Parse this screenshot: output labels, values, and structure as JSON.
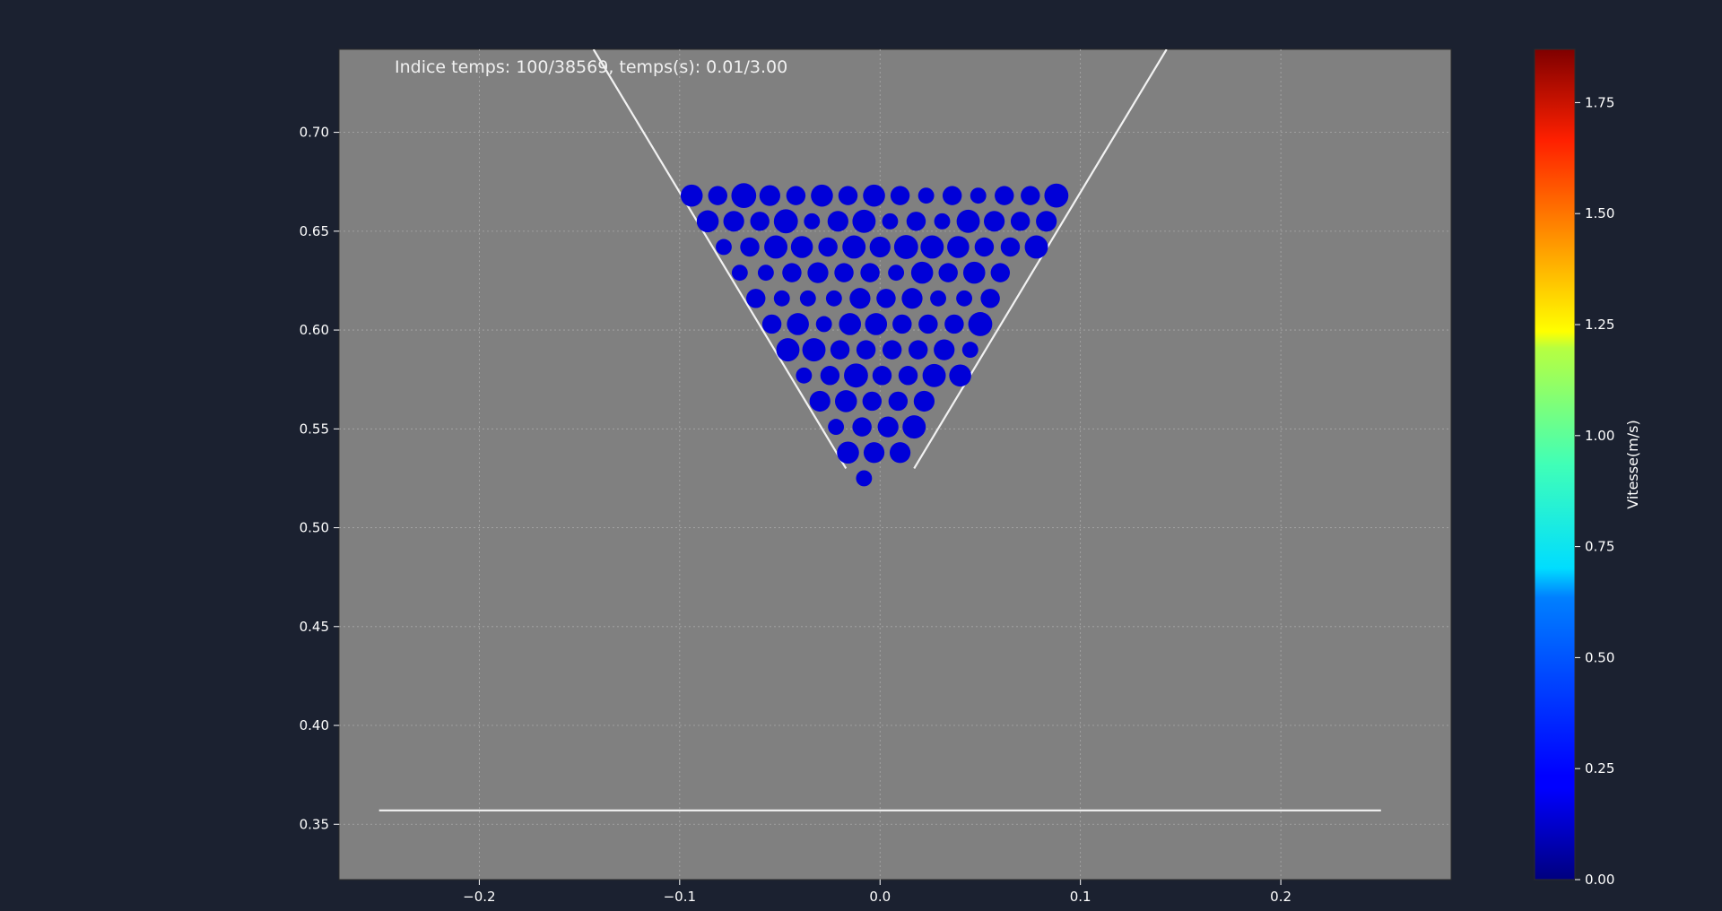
{
  "chart_data": {
    "type": "scatter",
    "annotation": "Indice temps: 100/38569, temps(s): 0.01/3.00",
    "xlim": [
      -0.27,
      0.285
    ],
    "ylim": [
      0.322,
      0.742
    ],
    "xticks": [
      -0.2,
      -0.1,
      0.0,
      0.1,
      0.2
    ],
    "xtick_labels": [
      "−0.2",
      "−0.1",
      "0.0",
      "0.1",
      "0.2"
    ],
    "yticks": [
      0.35,
      0.4,
      0.45,
      0.5,
      0.55,
      0.6,
      0.65,
      0.7
    ],
    "ytick_labels": [
      "0.35",
      "0.40",
      "0.45",
      "0.50",
      "0.55",
      "0.60",
      "0.65",
      "0.70"
    ],
    "grid": true,
    "walls": [
      {
        "x": [
          -0.143,
          -0.017
        ],
        "y": [
          0.742,
          0.53
        ]
      },
      {
        "x": [
          0.143,
          0.017
        ],
        "y": [
          0.742,
          0.53
        ]
      },
      {
        "x": [
          -0.25,
          0.25
        ],
        "y": [
          0.357,
          0.357
        ]
      }
    ],
    "particle_color": "#0000d8",
    "particles": [
      {
        "row": 0,
        "y": 0.668,
        "x": [
          -0.094,
          -0.081,
          -0.068,
          -0.055,
          -0.042,
          -0.029,
          -0.016,
          -0.003,
          0.01,
          0.023,
          0.036,
          0.049,
          0.062,
          0.075,
          0.088
        ],
        "r": [
          0.0055,
          0.0048,
          0.0062,
          0.0052,
          0.0048,
          0.0055,
          0.0048,
          0.0055,
          0.0048,
          0.004,
          0.0048,
          0.004,
          0.0048,
          0.0048,
          0.006
        ]
      },
      {
        "row": 1,
        "y": 0.655,
        "x": [
          -0.086,
          -0.073,
          -0.06,
          -0.047,
          -0.034,
          -0.021,
          -0.008,
          0.005,
          0.018,
          0.031,
          0.044,
          0.057,
          0.07,
          0.083
        ],
        "r": [
          0.0055,
          0.0052,
          0.0048,
          0.006,
          0.004,
          0.0052,
          0.0058,
          0.004,
          0.0048,
          0.004,
          0.0058,
          0.0052,
          0.0048,
          0.0052
        ]
      },
      {
        "row": 2,
        "y": 0.642,
        "x": [
          -0.078,
          -0.065,
          -0.052,
          -0.039,
          -0.026,
          -0.013,
          0.0,
          0.013,
          0.026,
          0.039,
          0.052,
          0.065,
          0.078
        ],
        "r": [
          0.004,
          0.0048,
          0.0058,
          0.0055,
          0.0048,
          0.0058,
          0.0052,
          0.006,
          0.0058,
          0.0055,
          0.0048,
          0.0048,
          0.0058
        ]
      },
      {
        "row": 3,
        "y": 0.629,
        "x": [
          -0.07,
          -0.057,
          -0.044,
          -0.031,
          -0.018,
          -0.005,
          0.008,
          0.021,
          0.034,
          0.047,
          0.06
        ],
        "r": [
          0.004,
          0.004,
          0.0048,
          0.0052,
          0.0048,
          0.0048,
          0.004,
          0.0055,
          0.0048,
          0.0055,
          0.0048
        ]
      },
      {
        "row": 4,
        "y": 0.616,
        "x": [
          -0.062,
          -0.049,
          -0.036,
          -0.023,
          -0.01,
          0.003,
          0.016,
          0.029,
          0.042,
          0.055
        ],
        "r": [
          0.0048,
          0.004,
          0.004,
          0.004,
          0.0052,
          0.0048,
          0.0052,
          0.004,
          0.004,
          0.0048
        ]
      },
      {
        "row": 5,
        "y": 0.603,
        "x": [
          -0.054,
          -0.041,
          -0.028,
          -0.015,
          -0.002,
          0.011,
          0.024,
          0.037,
          0.05
        ],
        "r": [
          0.0048,
          0.0055,
          0.004,
          0.0055,
          0.0055,
          0.0048,
          0.0048,
          0.0048,
          0.006
        ]
      },
      {
        "row": 6,
        "y": 0.59,
        "x": [
          -0.046,
          -0.033,
          -0.02,
          -0.007,
          0.006,
          0.019,
          0.032,
          0.045
        ],
        "r": [
          0.0058,
          0.0058,
          0.0048,
          0.0048,
          0.0048,
          0.0048,
          0.0052,
          0.004
        ]
      },
      {
        "row": 7,
        "y": 0.577,
        "x": [
          -0.038,
          -0.025,
          -0.012,
          0.001,
          0.014,
          0.027,
          0.04
        ],
        "r": [
          0.004,
          0.0048,
          0.006,
          0.0048,
          0.0048,
          0.0058,
          0.0055
        ]
      },
      {
        "row": 8,
        "y": 0.564,
        "x": [
          -0.03,
          -0.017,
          -0.004,
          0.009,
          0.022
        ],
        "r": [
          0.0052,
          0.0055,
          0.0048,
          0.0048,
          0.0052
        ]
      },
      {
        "row": 9,
        "y": 0.551,
        "x": [
          -0.022,
          -0.009,
          0.004,
          0.017
        ],
        "r": [
          0.004,
          0.0048,
          0.0052,
          0.0058
        ]
      },
      {
        "row": 10,
        "y": 0.538,
        "x": [
          -0.016,
          -0.003,
          0.01
        ],
        "r": [
          0.0055,
          0.0052,
          0.0052
        ]
      },
      {
        "row": 11,
        "y": 0.525,
        "x": [
          -0.008
        ],
        "r": [
          0.004
        ]
      }
    ]
  },
  "colorbar": {
    "label": "Vitesse(m/s)",
    "range": [
      0.0,
      1.87
    ],
    "ticks": [
      0.0,
      0.25,
      0.5,
      0.75,
      1.0,
      1.25,
      1.5,
      1.75
    ],
    "tick_labels": [
      "0.00",
      "0.25",
      "0.50",
      "0.75",
      "1.00",
      "1.25",
      "1.50",
      "1.75"
    ],
    "colormap": "jet"
  },
  "colors": {
    "figure_bg": "#1b2130",
    "axes_bg": "#808080",
    "wall": "#f2f2f2",
    "text": "#ffffff",
    "grid": "#a8a8a8"
  }
}
